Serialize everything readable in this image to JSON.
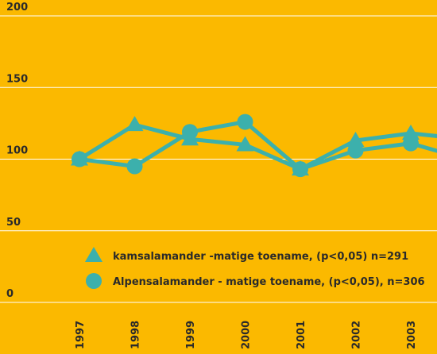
{
  "chart_data": {
    "type": "line",
    "categories": [
      "1997",
      "1998",
      "1999",
      "2000",
      "2001",
      "2002",
      "2003",
      null
    ],
    "series": [
      {
        "name": "kamsalamander -matige toename, (p<0,05) n=291",
        "color": "#3cb0ac",
        "marker": "triangle",
        "values": [
          100,
          124,
          114,
          110,
          93,
          113,
          118,
          114
        ]
      },
      {
        "name": "Alpensalamander - matige toename, (p<0,05), n=306",
        "color": "#3cb0ac",
        "marker": "circle",
        "values": [
          100,
          95,
          119,
          126,
          93,
          106,
          111,
          100
        ]
      }
    ],
    "ylim": [
      0,
      200
    ],
    "yticks": [
      0,
      50,
      100,
      150,
      200
    ],
    "grid": true,
    "grid_color": "#ffffff",
    "background": "#fbb900"
  }
}
